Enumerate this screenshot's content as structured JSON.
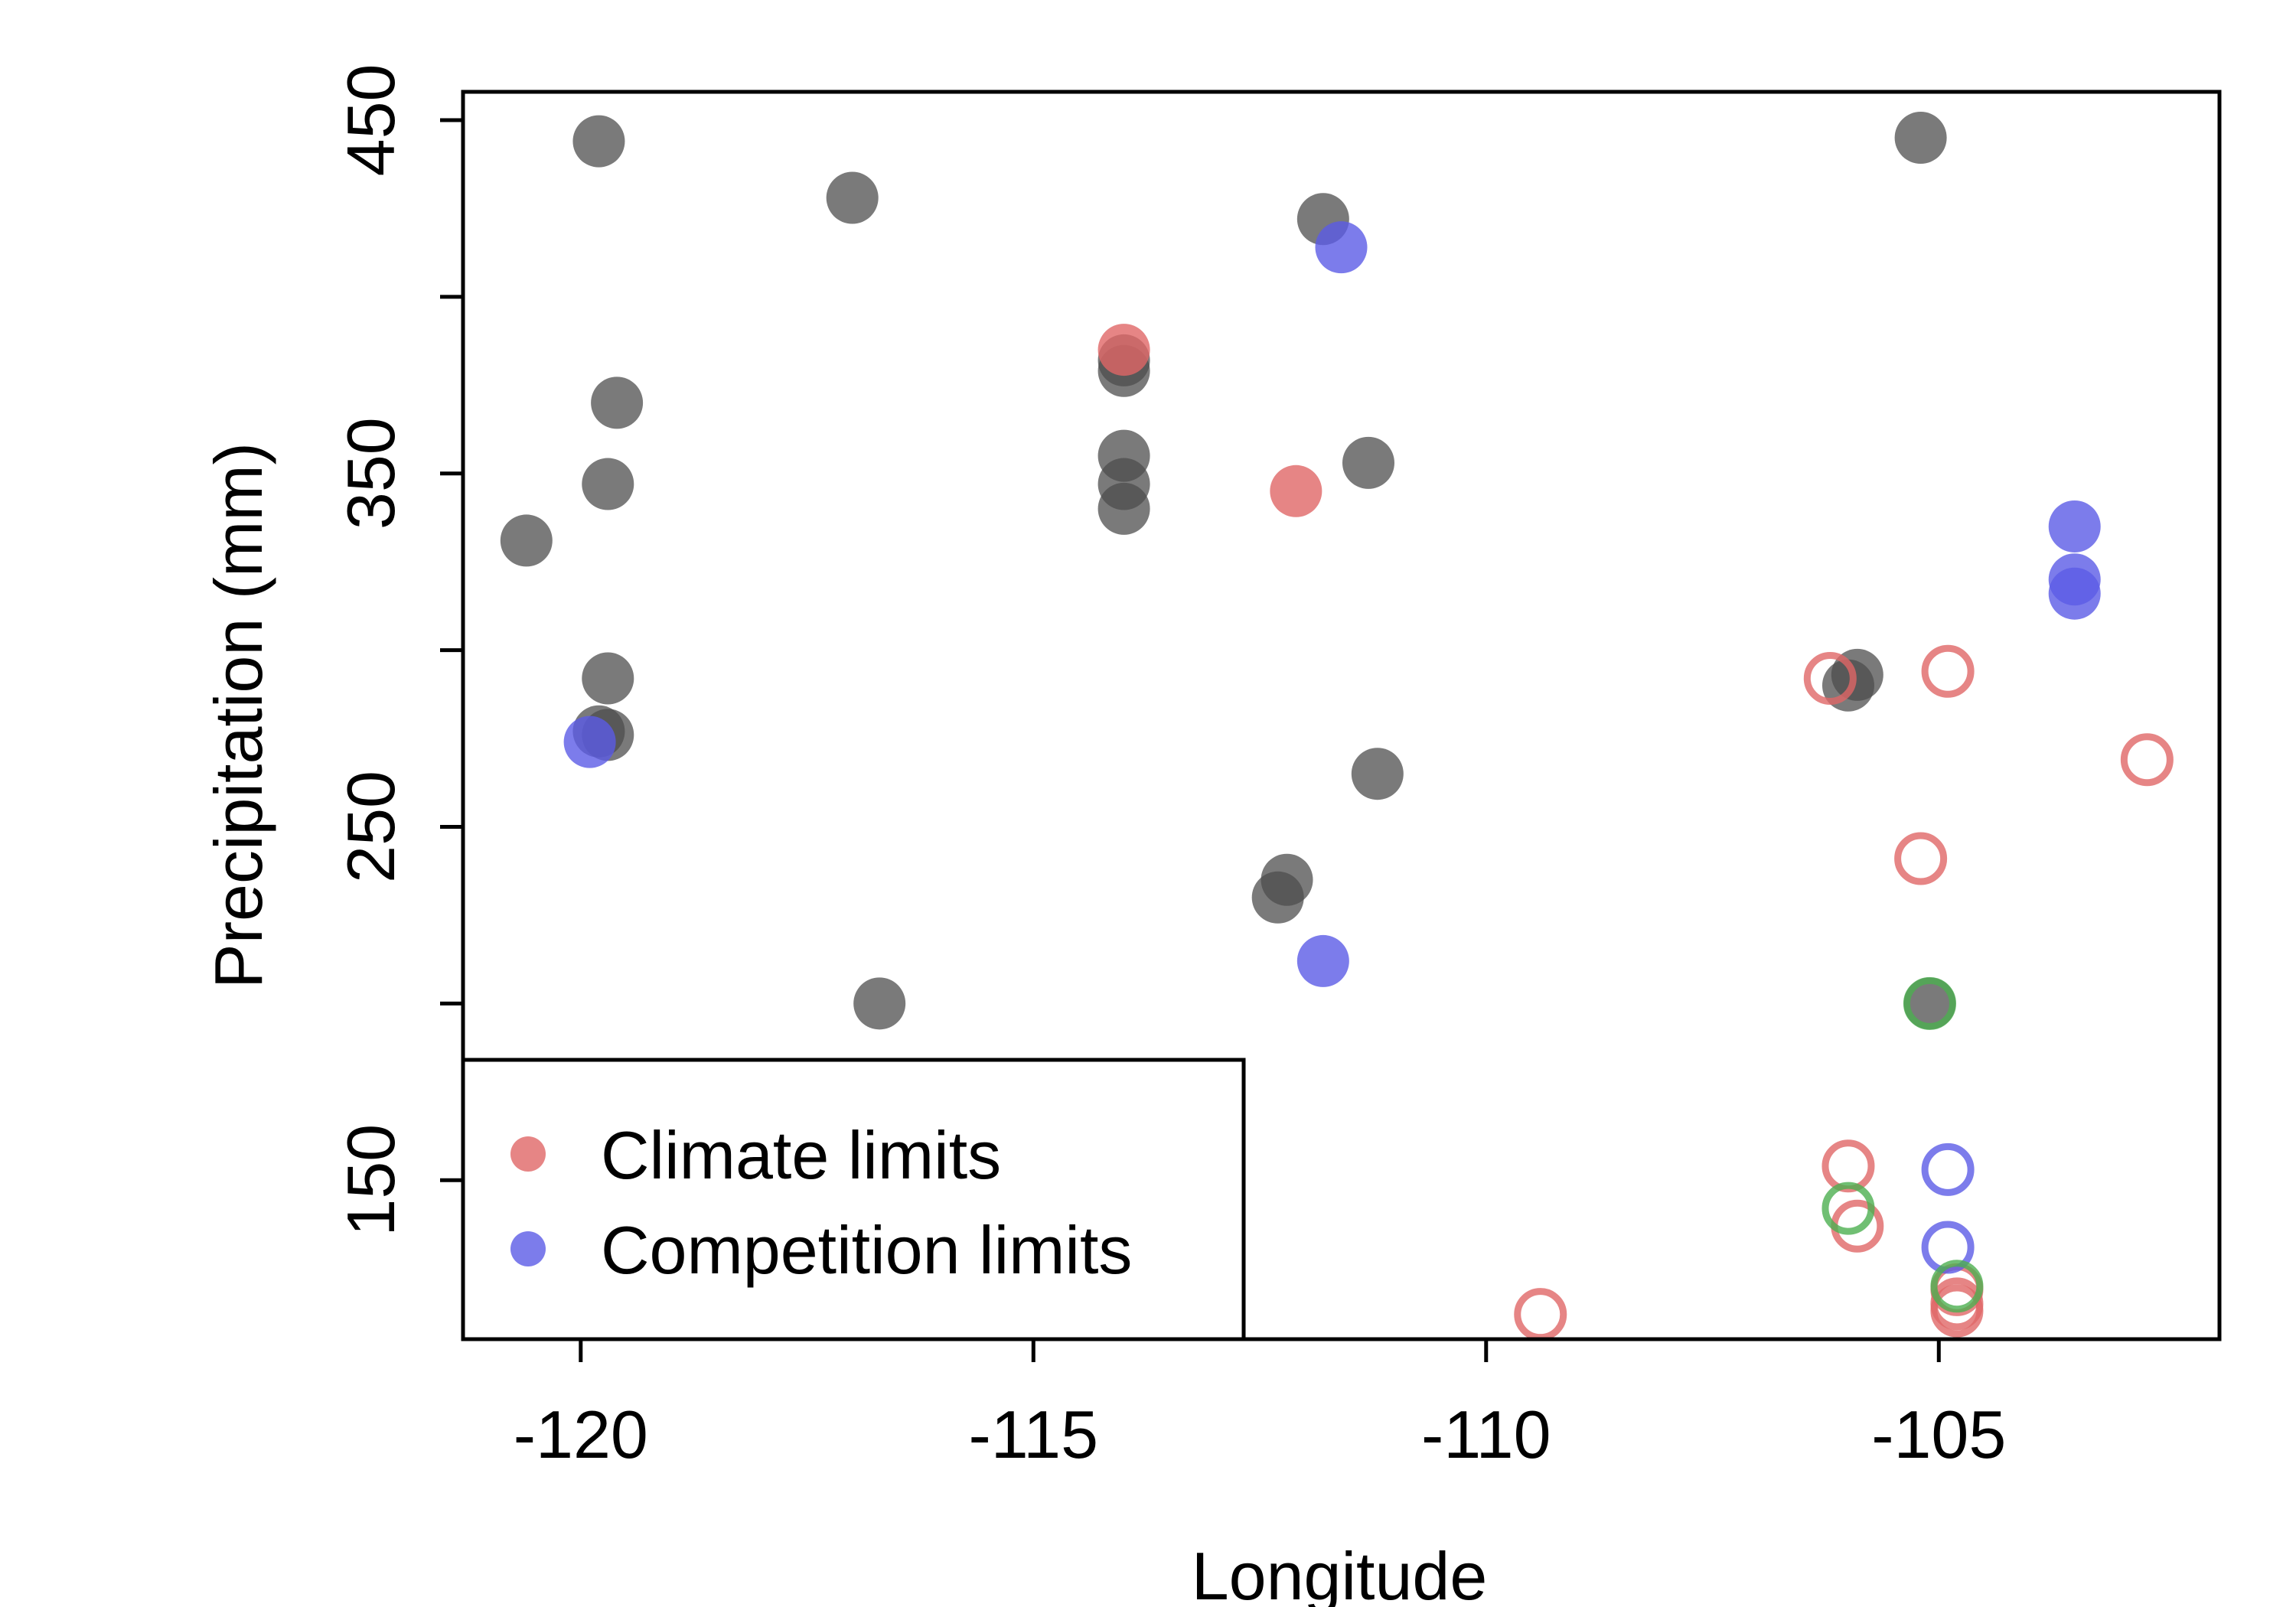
{
  "chart_data": {
    "type": "scatter",
    "title": "",
    "xlabel": "Longitude",
    "ylabel": "Precipitation (mm)",
    "xlim": [
      -121.3,
      -101.9
    ],
    "ylim": [
      105,
      458
    ],
    "x_ticks": [
      -120,
      -115,
      -110,
      -105
    ],
    "x_tick_labels": [
      "-120",
      "-115",
      "-110",
      "-105"
    ],
    "y_ticks": [
      150,
      200,
      250,
      300,
      350,
      400,
      450
    ],
    "y_tick_labels": [
      "150",
      "",
      "250",
      "",
      "350",
      "",
      "450"
    ],
    "grid": false,
    "legend": {
      "position": "bottom-left",
      "entries": [
        {
          "label": "Climate limits",
          "color": "#e06666"
        },
        {
          "label": "Competition limits",
          "color": "#5b5be6"
        }
      ]
    },
    "colors": {
      "none": "#4d4d4d",
      "climate": "#e06666",
      "competition": "#5b5be6",
      "both": "#4caf50"
    },
    "series": [
      {
        "group": "none",
        "marker": "filled",
        "points": [
          [
            -119.8,
            444
          ],
          [
            -117.0,
            428
          ],
          [
            -119.6,
            370
          ],
          [
            -119.7,
            347
          ],
          [
            -120.6,
            331
          ],
          [
            -119.7,
            292
          ],
          [
            -119.8,
            277
          ],
          [
            -119.7,
            276
          ],
          [
            -116.7,
            200
          ],
          [
            -114.0,
            382
          ],
          [
            -114.0,
            379
          ],
          [
            -114.0,
            355
          ],
          [
            -114.0,
            347
          ],
          [
            -114.0,
            340
          ],
          [
            -111.8,
            422
          ],
          [
            -111.3,
            353
          ],
          [
            -111.2,
            265
          ],
          [
            -112.2,
            235
          ],
          [
            -112.3,
            230
          ],
          [
            -105.9,
            293
          ],
          [
            -106.0,
            290
          ],
          [
            -105.2,
            445
          ],
          [
            -105.1,
            200
          ]
        ]
      },
      {
        "group": "climate",
        "marker": "filled",
        "points": [
          [
            -114.0,
            385
          ],
          [
            -112.1,
            345
          ]
        ]
      },
      {
        "group": "competition",
        "marker": "filled",
        "points": [
          [
            -111.6,
            414
          ],
          [
            -119.9,
            274
          ],
          [
            -111.8,
            212
          ],
          [
            -103.5,
            335
          ],
          [
            -103.5,
            320
          ],
          [
            -103.5,
            316
          ]
        ]
      },
      {
        "group": "climate",
        "marker": "open",
        "points": [
          [
            -106.2,
            292
          ],
          [
            -104.9,
            294
          ],
          [
            -102.7,
            269
          ],
          [
            -105.2,
            241
          ],
          [
            -106.0,
            154
          ],
          [
            -105.9,
            137
          ],
          [
            -109.4,
            112
          ],
          [
            -104.8,
            119
          ],
          [
            -104.8,
            115
          ],
          [
            -104.8,
            113
          ]
        ]
      },
      {
        "group": "competition",
        "marker": "open",
        "points": [
          [
            -104.9,
            131
          ],
          [
            -104.9,
            153
          ]
        ]
      },
      {
        "group": "both",
        "marker": "open",
        "points": [
          [
            -105.1,
            200
          ],
          [
            -106.0,
            142
          ],
          [
            -104.8,
            120
          ]
        ]
      }
    ]
  }
}
